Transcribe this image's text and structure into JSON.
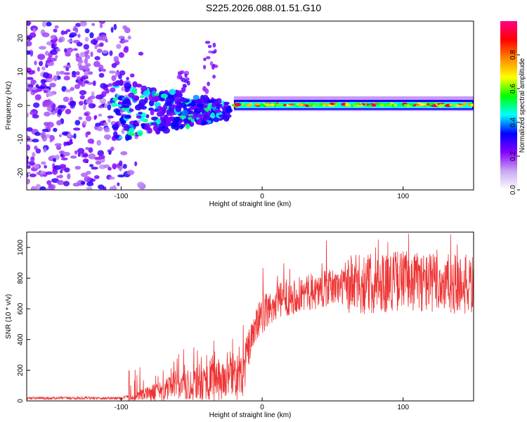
{
  "title": "S225.2026.088.01.51.G10",
  "chart_data": [
    {
      "type": "heatmap",
      "xlabel": "Height of straight line (km)",
      "ylabel": "Frequency (Hz)",
      "xlim": [
        -167,
        150
      ],
      "ylim": [
        -25,
        25
      ],
      "xticks": [
        -100,
        0,
        100
      ],
      "yticks": [
        -20,
        -10,
        0,
        10,
        20
      ],
      "colorbar": {
        "label": "Normalized spectral amplitude",
        "range": [
          0,
          1
        ],
        "ticks": [
          0.0,
          0.2,
          0.4,
          0.6,
          0.8
        ],
        "colors": [
          "#ffffff",
          "#c8a8f0",
          "#8800ff",
          "#0000ff",
          "#00ffff",
          "#00ff00",
          "#ffff00",
          "#ff8800",
          "#ff0000",
          "#ff0088"
        ]
      },
      "features": [
        {
          "name": "noise",
          "x": [
            -167,
            -95
          ],
          "freq": [
            -25,
            25
          ],
          "amplitude": 0.15
        },
        {
          "name": "transition",
          "x": [
            -95,
            -25
          ],
          "freq": [
            -8,
            8
          ],
          "amplitude": 0.3
        },
        {
          "name": "signal",
          "x": [
            -20,
            150
          ],
          "freq_center": 0,
          "amplitude": 0.85
        }
      ]
    },
    {
      "type": "line",
      "xlabel": "Height of straight line (km)",
      "ylabel": "SNR (10 * v/v)",
      "xlim": [
        -167,
        150
      ],
      "ylim": [
        0,
        1100
      ],
      "xticks": [
        -100,
        0,
        100
      ],
      "yticks": [
        0,
        200,
        400,
        600,
        800,
        1000
      ],
      "color": "#ee3333",
      "trend": {
        "x": [
          -167,
          -100,
          -90,
          -80,
          -70,
          -60,
          -50,
          -40,
          -30,
          -20,
          -15,
          -10,
          -5,
          0,
          10,
          20,
          30,
          40,
          50,
          60,
          70,
          80,
          90,
          100,
          110,
          120,
          130,
          140,
          150
        ],
        "y": [
          18,
          18,
          40,
          90,
          130,
          160,
          200,
          240,
          250,
          260,
          280,
          330,
          480,
          560,
          640,
          680,
          700,
          720,
          740,
          750,
          760,
          770,
          780,
          790,
          780,
          770,
          760,
          760,
          750
        ]
      }
    }
  ]
}
